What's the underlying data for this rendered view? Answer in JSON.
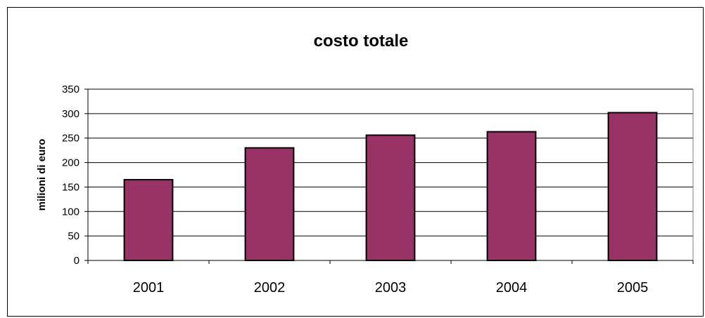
{
  "chart_data": {
    "type": "bar",
    "title": "costo totale",
    "xlabel": "",
    "ylabel": "milioni di euro",
    "categories": [
      "2001",
      "2002",
      "2003",
      "2004",
      "2005"
    ],
    "values": [
      165,
      230,
      256,
      263,
      302
    ],
    "ylim": [
      0,
      350
    ],
    "yticks": [
      "0",
      "50",
      "100",
      "150",
      "200",
      "250",
      "300",
      "350"
    ],
    "grid": true,
    "legend": "none",
    "bar_color": "#993366",
    "bar_edge_color": "#000000"
  }
}
